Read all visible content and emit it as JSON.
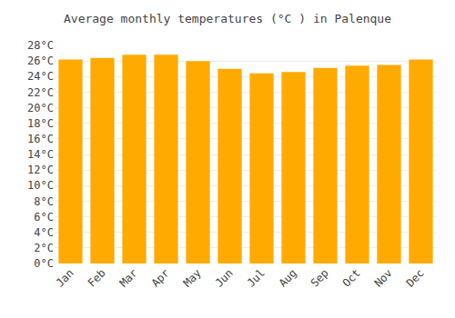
{
  "chart_data": {
    "type": "bar",
    "title": "Average monthly temperatures (°C ) in Palenque",
    "categories": [
      "Jan",
      "Feb",
      "Mar",
      "Apr",
      "May",
      "Jun",
      "Jul",
      "Aug",
      "Sep",
      "Oct",
      "Nov",
      "Dec"
    ],
    "values": [
      26.2,
      26.4,
      26.8,
      26.8,
      26.0,
      25.0,
      24.4,
      24.6,
      25.1,
      25.4,
      25.5,
      26.2
    ],
    "color": "#FFAA00",
    "ylim": [
      0,
      28
    ],
    "yticks": [
      {
        "value": 0,
        "label": "0°C"
      },
      {
        "value": 2,
        "label": "2°C"
      },
      {
        "value": 4,
        "label": "4°C"
      },
      {
        "value": 6,
        "label": "6°C"
      },
      {
        "value": 8,
        "label": "8°C"
      },
      {
        "value": 10,
        "label": "10°C"
      },
      {
        "value": 12,
        "label": "12°C"
      },
      {
        "value": 14,
        "label": "14°C"
      },
      {
        "value": 16,
        "label": "16°C"
      },
      {
        "value": 18,
        "label": "18°C"
      },
      {
        "value": 20,
        "label": "20°C"
      },
      {
        "value": 22,
        "label": "22°C"
      },
      {
        "value": 24,
        "label": "24°C"
      },
      {
        "value": 26,
        "label": "26°C"
      },
      {
        "value": 28,
        "label": "28°C"
      }
    ],
    "grid": true
  }
}
